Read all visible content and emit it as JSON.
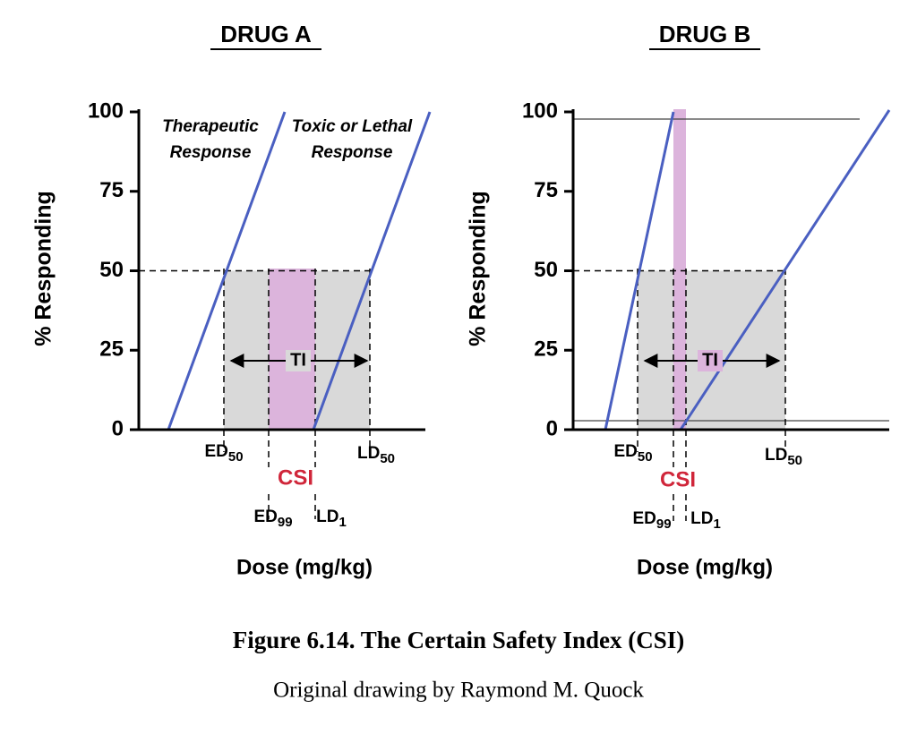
{
  "panels": [
    {
      "title": "DRUG A",
      "y_label": "% Responding",
      "yticks": [
        0,
        25,
        50,
        75,
        100
      ],
      "x_label": "Dose (mg/kg)",
      "curve_labels": [
        [
          "Therapeutic",
          "Response"
        ],
        [
          "Toxic or Lethal",
          "Response"
        ]
      ],
      "ed50": {
        "text": "ED",
        "sub": "50"
      },
      "ld50": {
        "text": "LD",
        "sub": "50"
      },
      "ed99": {
        "text": "ED",
        "sub": "99"
      },
      "ld1": {
        "text": "LD",
        "sub": "1"
      },
      "csi": "CSI",
      "ti": "TI"
    },
    {
      "title": "DRUG B",
      "y_label": "% Responding",
      "yticks": [
        0,
        25,
        50,
        75,
        100
      ],
      "x_label": "Dose (mg/kg)",
      "ed50": {
        "text": "ED",
        "sub": "50"
      },
      "ld50": {
        "text": "LD",
        "sub": "50"
      },
      "ed99": {
        "text": "ED",
        "sub": "99"
      },
      "ld1": {
        "text": "LD",
        "sub": "1"
      },
      "csi": "CSI",
      "ti": "TI"
    }
  ],
  "caption": {
    "title": "Figure 6.14. The Certain Safety Index (CSI)",
    "credit": "Original drawing by Raymond M. Quock"
  }
}
